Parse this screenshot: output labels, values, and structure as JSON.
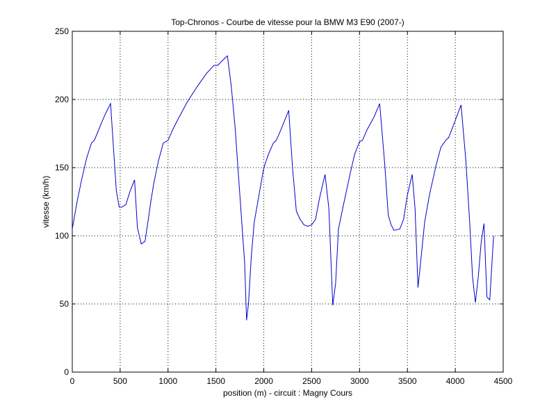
{
  "chart_data": {
    "type": "line",
    "title": "Top-Chronos - Courbe de vitesse pour la BMW M3 E90 (2007-)",
    "xlabel": "position (m) - circuit : Magny Cours",
    "ylabel": "vitesse (km/h)",
    "xlim": [
      0,
      4500
    ],
    "ylim": [
      0,
      250
    ],
    "xticks": [
      0,
      500,
      1000,
      1500,
      2000,
      2500,
      3000,
      3500,
      4000,
      4500
    ],
    "yticks": [
      0,
      50,
      100,
      150,
      200,
      250
    ],
    "grid": true,
    "colors": {
      "line": "#0000cc",
      "axes": "#000000",
      "background": "#ffffff"
    },
    "series": [
      {
        "x": [
          0,
          50,
          100,
          150,
          200,
          230,
          260,
          300,
          350,
          400,
          430,
          460,
          490,
          520,
          560,
          600,
          650,
          680,
          720,
          760,
          790,
          820,
          850,
          900,
          950,
          1000,
          1050,
          1100,
          1200,
          1300,
          1400,
          1480,
          1520,
          1560,
          1620,
          1660,
          1700,
          1750,
          1800,
          1820,
          1840,
          1870,
          1900,
          1950,
          2000,
          2050,
          2100,
          2130,
          2180,
          2260,
          2300,
          2340,
          2380,
          2420,
          2460,
          2500,
          2540,
          2580,
          2640,
          2680,
          2720,
          2750,
          2780,
          2830,
          2900,
          2950,
          3000,
          3030,
          3080,
          3150,
          3210,
          3260,
          3300,
          3330,
          3360,
          3420,
          3460,
          3500,
          3550,
          3580,
          3610,
          3640,
          3680,
          3730,
          3800,
          3850,
          3900,
          3930,
          3980,
          4060,
          4110,
          4150,
          4180,
          4210,
          4240,
          4270,
          4300,
          4330,
          4360,
          4400
        ],
        "y": [
          105,
          125,
          142,
          157,
          168,
          170,
          175,
          182,
          190,
          197,
          165,
          133,
          121,
          121,
          123,
          132,
          141,
          106,
          94,
          96,
          110,
          125,
          138,
          155,
          168,
          170,
          178,
          185,
          198,
          209,
          219,
          225,
          225,
          228,
          232,
          210,
          180,
          130,
          80,
          38,
          50,
          85,
          110,
          130,
          150,
          160,
          168,
          170,
          178,
          192,
          150,
          118,
          112,
          108,
          107,
          108,
          112,
          127,
          145,
          120,
          49,
          65,
          105,
          122,
          145,
          160,
          169,
          170,
          178,
          187,
          197,
          155,
          115,
          108,
          104,
          105,
          112,
          130,
          145,
          120,
          62,
          82,
          110,
          130,
          152,
          165,
          170,
          172,
          181,
          196,
          155,
          110,
          70,
          51,
          70,
          95,
          109,
          55,
          53,
          100
        ]
      }
    ]
  }
}
